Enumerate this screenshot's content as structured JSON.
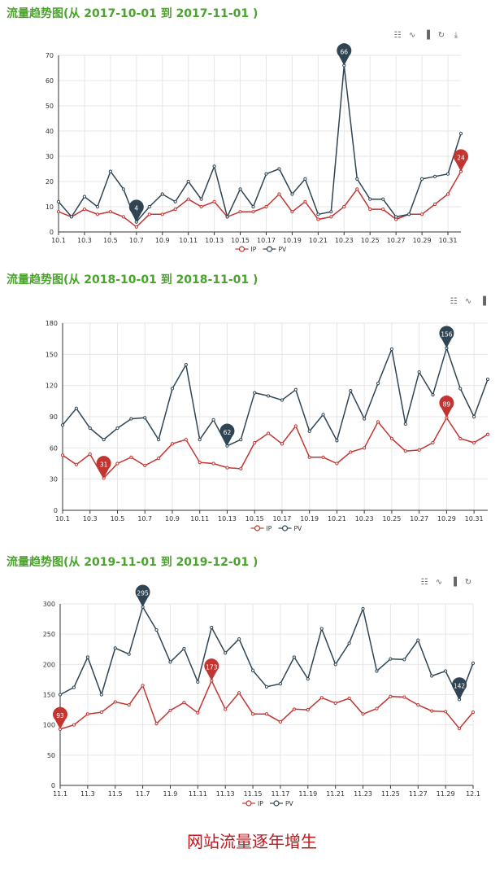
{
  "colors": {
    "ip": "#c23531",
    "pv": "#2f4554",
    "title": "#4aa32c",
    "caption": "#c0171c"
  },
  "footer": {
    "caption": "网站流量逐年增生"
  },
  "chart_data": [
    {
      "type": "line",
      "title": "流量趋势图(从 2017-10-01 到 2017-11-01 )",
      "toolbox": [
        "data-view-icon",
        "line-chart-icon",
        "bar-chart-icon",
        "restore-icon",
        "save-image-icon"
      ],
      "x": [
        "10.1",
        "10.2",
        "10.3",
        "10.4",
        "10.5",
        "10.6",
        "10.7",
        "10.8",
        "10.9",
        "10.10",
        "10.11",
        "10.12",
        "10.13",
        "10.14",
        "10.15",
        "10.16",
        "10.17",
        "10.18",
        "10.19",
        "10.20",
        "10.21",
        "10.22",
        "10.23",
        "10.24",
        "10.25",
        "10.26",
        "10.27",
        "10.28",
        "10.29",
        "10.30",
        "10.31",
        "11.1"
      ],
      "xticks": [
        "10.1",
        "10.3",
        "10.5",
        "10.7",
        "10.9",
        "10.11",
        "10.13",
        "10.15",
        "10.17",
        "10.19",
        "10.21",
        "10.23",
        "10.25",
        "10.27",
        "10.29",
        "10.31"
      ],
      "ylim": [
        0,
        70
      ],
      "yticks": [
        0,
        10,
        20,
        30,
        40,
        50,
        60,
        70
      ],
      "series": [
        {
          "name": "IP",
          "key": "ip",
          "values": [
            8,
            6,
            9,
            7,
            8,
            6,
            2,
            7,
            7,
            9,
            13,
            10,
            12,
            6,
            8,
            8,
            10,
            15,
            8,
            12,
            5,
            6,
            10,
            17,
            9,
            9,
            5,
            7,
            7,
            11,
            15,
            24
          ]
        },
        {
          "name": "PV",
          "key": "pv",
          "values": [
            12,
            6,
            14,
            10,
            24,
            17,
            4,
            10,
            15,
            12,
            20,
            13,
            26,
            6,
            17,
            10,
            23,
            25,
            15,
            21,
            7,
            8,
            66,
            21,
            13,
            13,
            6,
            7,
            21,
            22,
            23,
            39
          ]
        }
      ],
      "markers": [
        {
          "series": "pv",
          "index": 6,
          "label": "4"
        },
        {
          "series": "pv",
          "index": 22,
          "label": "66"
        },
        {
          "series": "ip",
          "index": 31,
          "label": "24"
        }
      ],
      "legend": [
        "IP",
        "PV"
      ]
    },
    {
      "type": "line",
      "title": "流量趋势图(从 2018-10-01 到 2018-11-01 )",
      "toolbox": [
        "data-view-icon",
        "line-chart-icon",
        "bar-chart-icon"
      ],
      "x": [
        "10.1",
        "10.2",
        "10.3",
        "10.4",
        "10.5",
        "10.6",
        "10.7",
        "10.8",
        "10.9",
        "10.10",
        "10.11",
        "10.12",
        "10.13",
        "10.14",
        "10.15",
        "10.16",
        "10.17",
        "10.18",
        "10.19",
        "10.20",
        "10.21",
        "10.22",
        "10.23",
        "10.24",
        "10.25",
        "10.26",
        "10.27",
        "10.28",
        "10.29",
        "10.30",
        "10.31",
        "11.1"
      ],
      "xticks": [
        "10.1",
        "10.3",
        "10.5",
        "10.7",
        "10.9",
        "10.11",
        "10.13",
        "10.15",
        "10.17",
        "10.19",
        "10.21",
        "10.23",
        "10.25",
        "10.27",
        "10.29",
        "10.31"
      ],
      "ylim": [
        0,
        180
      ],
      "yticks": [
        0,
        30,
        60,
        90,
        120,
        150,
        180
      ],
      "series": [
        {
          "name": "IP",
          "key": "ip",
          "values": [
            53,
            44,
            54,
            31,
            45,
            51,
            43,
            50,
            64,
            68,
            46,
            45,
            41,
            40,
            65,
            74,
            64,
            81,
            51,
            51,
            45,
            56,
            60,
            85,
            69,
            57,
            58,
            65,
            89,
            69,
            65,
            73
          ]
        },
        {
          "name": "PV",
          "key": "pv",
          "values": [
            82,
            98,
            79,
            68,
            79,
            88,
            89,
            68,
            117,
            140,
            68,
            87,
            62,
            68,
            113,
            110,
            106,
            116,
            76,
            92,
            67,
            115,
            88,
            122,
            155,
            83,
            133,
            111,
            156,
            117,
            90,
            126
          ]
        }
      ],
      "markers": [
        {
          "series": "ip",
          "index": 3,
          "label": "31"
        },
        {
          "series": "pv",
          "index": 12,
          "label": "62"
        },
        {
          "series": "pv",
          "index": 28,
          "label": "156"
        },
        {
          "series": "ip",
          "index": 28,
          "label": "89"
        }
      ],
      "legend": [
        "IP",
        "PV"
      ]
    },
    {
      "type": "line",
      "title": "流量趋势图(从 2019-11-01 到 2019-12-01 )",
      "toolbox": [
        "data-view-icon",
        "line-chart-icon",
        "bar-chart-icon",
        "restore-icon"
      ],
      "x": [
        "11.1",
        "11.2",
        "11.3",
        "11.4",
        "11.5",
        "11.6",
        "11.7",
        "11.8",
        "11.9",
        "11.10",
        "11.11",
        "11.12",
        "11.13",
        "11.14",
        "11.15",
        "11.16",
        "11.17",
        "11.18",
        "11.19",
        "11.20",
        "11.21",
        "11.22",
        "11.23",
        "11.24",
        "11.25",
        "11.26",
        "11.27",
        "11.28",
        "11.29",
        "11.30",
        "12.1"
      ],
      "xticks": [
        "11.1",
        "11.3",
        "11.5",
        "11.7",
        "11.9",
        "11.11",
        "11.13",
        "11.15",
        "11.17",
        "11.19",
        "11.21",
        "11.23",
        "11.25",
        "11.27",
        "11.29",
        "12.1"
      ],
      "ylim": [
        0,
        300
      ],
      "yticks": [
        0,
        50,
        100,
        150,
        200,
        250,
        300
      ],
      "series": [
        {
          "name": "IP",
          "key": "ip",
          "values": [
            93,
            100,
            118,
            121,
            138,
            133,
            165,
            102,
            124,
            137,
            120,
            173,
            126,
            153,
            118,
            118,
            105,
            126,
            125,
            145,
            136,
            144,
            118,
            127,
            147,
            146,
            133,
            123,
            122,
            94,
            121
          ]
        },
        {
          "name": "PV",
          "key": "pv",
          "values": [
            150,
            162,
            212,
            150,
            227,
            217,
            295,
            257,
            204,
            226,
            171,
            261,
            219,
            242,
            190,
            163,
            168,
            212,
            176,
            259,
            200,
            235,
            292,
            189,
            209,
            208,
            240,
            181,
            189,
            142,
            202
          ]
        }
      ],
      "markers": [
        {
          "series": "ip",
          "index": 0,
          "label": "93"
        },
        {
          "series": "pv",
          "index": 6,
          "label": "295"
        },
        {
          "series": "ip",
          "index": 11,
          "label": "173"
        },
        {
          "series": "pv",
          "index": 29,
          "label": "142"
        }
      ],
      "legend": [
        "IP",
        "PV"
      ]
    }
  ]
}
